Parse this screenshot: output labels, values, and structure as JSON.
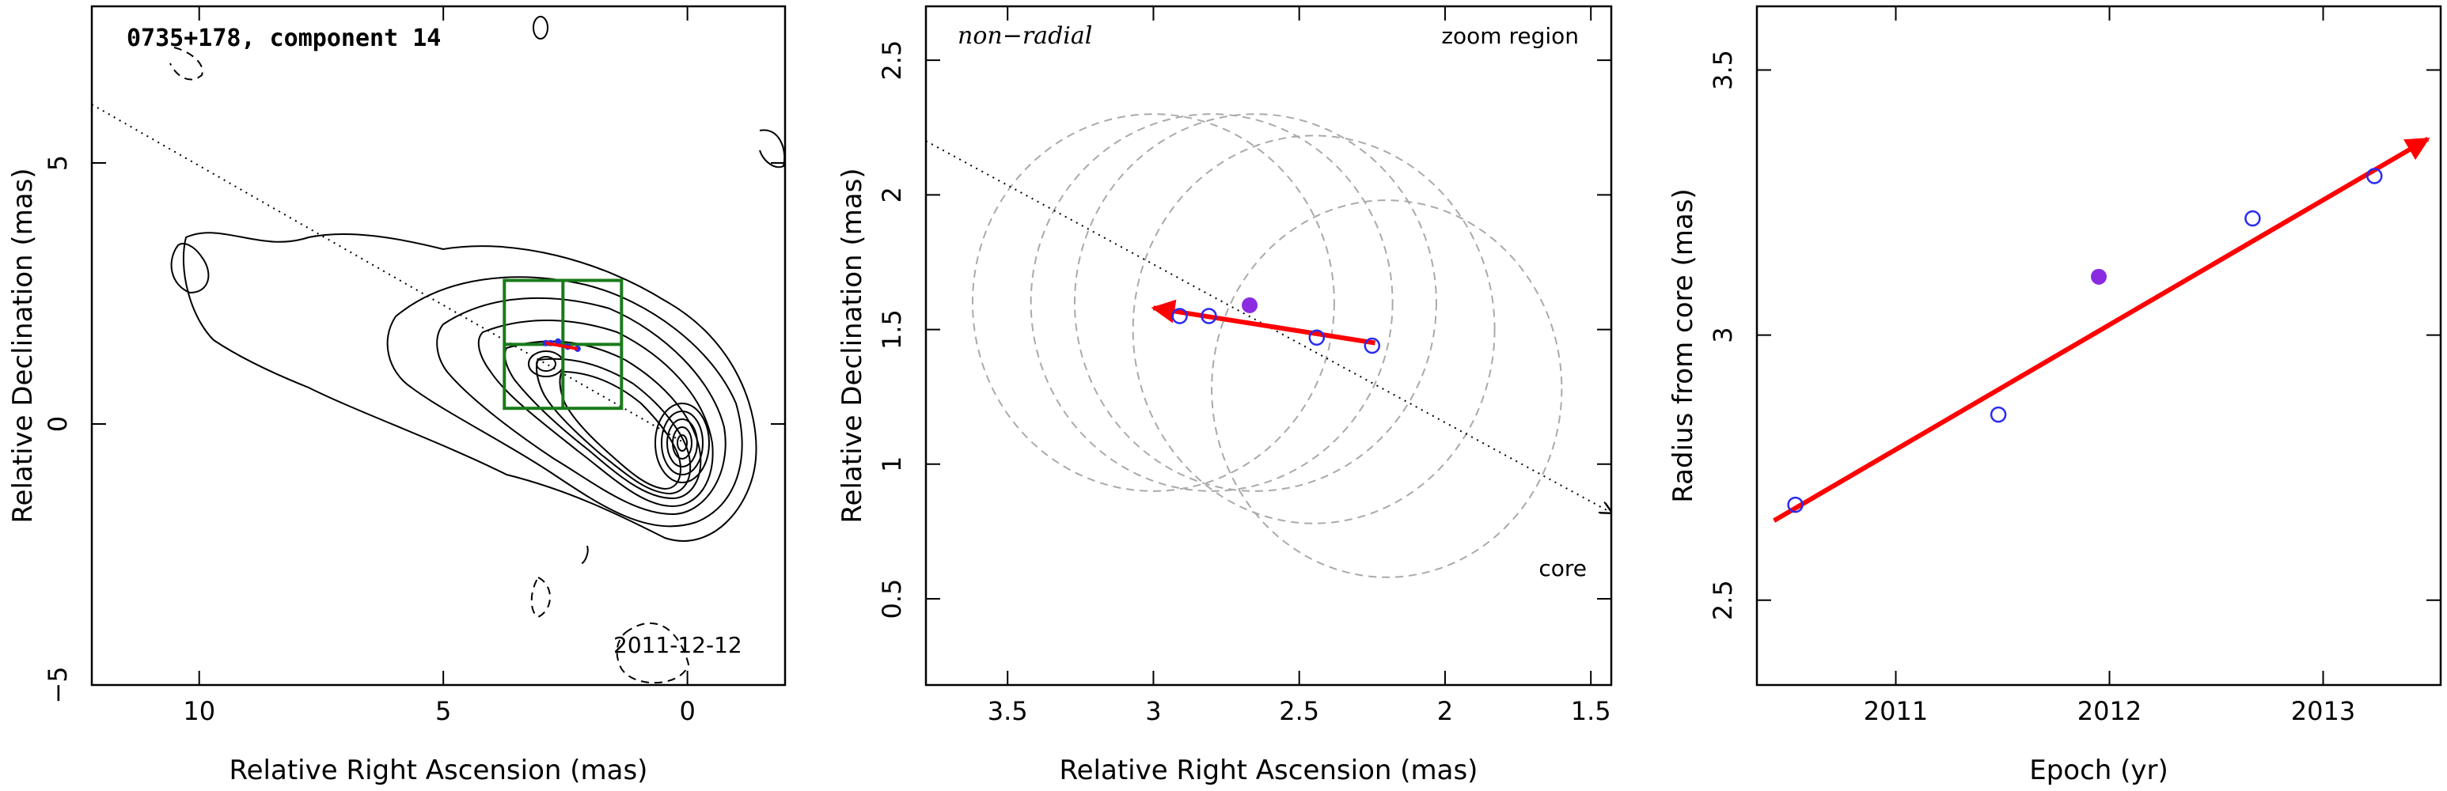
{
  "chart_data": [
    {
      "type": "contour",
      "title": "0735+178, component 14",
      "date": "2011-12-12",
      "xlabel": "Relative Right Ascension (mas)",
      "ylabel": "Relative Declination (mas)",
      "xlim": [
        12.2,
        -2.0
      ],
      "ylim": [
        -5.0,
        8.0
      ],
      "xticks": [
        10,
        5,
        0
      ],
      "xticklabels": [
        "10",
        "5",
        "0"
      ],
      "yticks": [
        -5,
        0,
        5
      ],
      "yticklabels": [
        "−5",
        "0",
        "5"
      ],
      "core": [
        0,
        0
      ],
      "zoom_box": {
        "ra": [
          3.75,
          1.35
        ],
        "dec": [
          0.3,
          2.75
        ],
        "color": "#1a7a1a"
      },
      "component_positions": [
        {
          "ra": 2.9,
          "dec": 1.55
        },
        {
          "ra": 2.8,
          "dec": 1.55
        },
        {
          "ra": 2.65,
          "dec": 1.58
        },
        {
          "ra": 2.45,
          "dec": 1.48
        },
        {
          "ra": 2.25,
          "dec": 1.44
        }
      ]
    },
    {
      "type": "scatter",
      "label_topleft": "non−radial",
      "label_topright": "zoom region",
      "label_core": "core",
      "xlabel": "Relative Right Ascension (mas)",
      "ylabel": "Relative Declination (mas)",
      "xlim": [
        3.78,
        1.43
      ],
      "ylim": [
        0.18,
        2.7
      ],
      "xticks": [
        3.5,
        3,
        2.5,
        2,
        1.5
      ],
      "xticklabels": [
        "3.5",
        "3",
        "2.5",
        "2",
        "1.5"
      ],
      "yticks": [
        0.5,
        1,
        1.5,
        2,
        2.5
      ],
      "yticklabels": [
        "0.5",
        "1",
        "1.5",
        "2",
        "2.5"
      ],
      "points_open": [
        {
          "x": 2.91,
          "y": 1.55
        },
        {
          "x": 2.81,
          "y": 1.55
        },
        {
          "x": 2.44,
          "y": 1.47
        },
        {
          "x": 2.25,
          "y": 1.44
        }
      ],
      "point_filled": {
        "x": 2.67,
        "y": 1.59
      },
      "beam_ellipses": [
        {
          "x": 3.0,
          "y": 1.6,
          "rx": 0.62,
          "ry": 0.7
        },
        {
          "x": 2.8,
          "y": 1.6,
          "rx": 0.62,
          "ry": 0.7
        },
        {
          "x": 2.65,
          "y": 1.6,
          "rx": 0.62,
          "ry": 0.7
        },
        {
          "x": 2.45,
          "y": 1.5,
          "rx": 0.62,
          "ry": 0.72
        },
        {
          "x": 2.2,
          "y": 1.28,
          "rx": 0.6,
          "ry": 0.7
        }
      ],
      "motion_arrow": {
        "from": [
          2.24,
          1.45
        ],
        "to": [
          3.0,
          1.58
        ]
      },
      "radial_line": {
        "from": [
          3.78,
          2.2
        ],
        "to": [
          1.43,
          0.82
        ]
      },
      "colors": {
        "open": "#2a2af0",
        "filled": "#8a2be2",
        "arrow": "#ff0000",
        "ellipse": "#aaaaaa"
      }
    },
    {
      "type": "scatter",
      "xlabel": "Epoch (yr)",
      "ylabel": "Radius from core (mas)",
      "xlim": [
        2010.35,
        2013.55
      ],
      "ylim": [
        2.34,
        3.62
      ],
      "xticks": [
        2011,
        2012,
        2013
      ],
      "xticklabels": [
        "2011",
        "2012",
        "2013"
      ],
      "yticks": [
        2.5,
        3,
        3.5
      ],
      "yticklabels": [
        "2.5",
        "3",
        "3.5"
      ],
      "points_open": [
        {
          "x": 2010.53,
          "y": 2.68
        },
        {
          "x": 2011.48,
          "y": 2.85
        },
        {
          "x": 2012.67,
          "y": 3.22
        },
        {
          "x": 2013.24,
          "y": 3.3
        }
      ],
      "point_filled": {
        "x": 2011.95,
        "y": 3.11
      },
      "fit_arrow": {
        "from": [
          2010.43,
          2.65
        ],
        "to": [
          2013.49,
          3.37
        ]
      },
      "colors": {
        "open": "#2a2af0",
        "filled": "#8a2be2",
        "arrow": "#ff0000"
      }
    }
  ]
}
